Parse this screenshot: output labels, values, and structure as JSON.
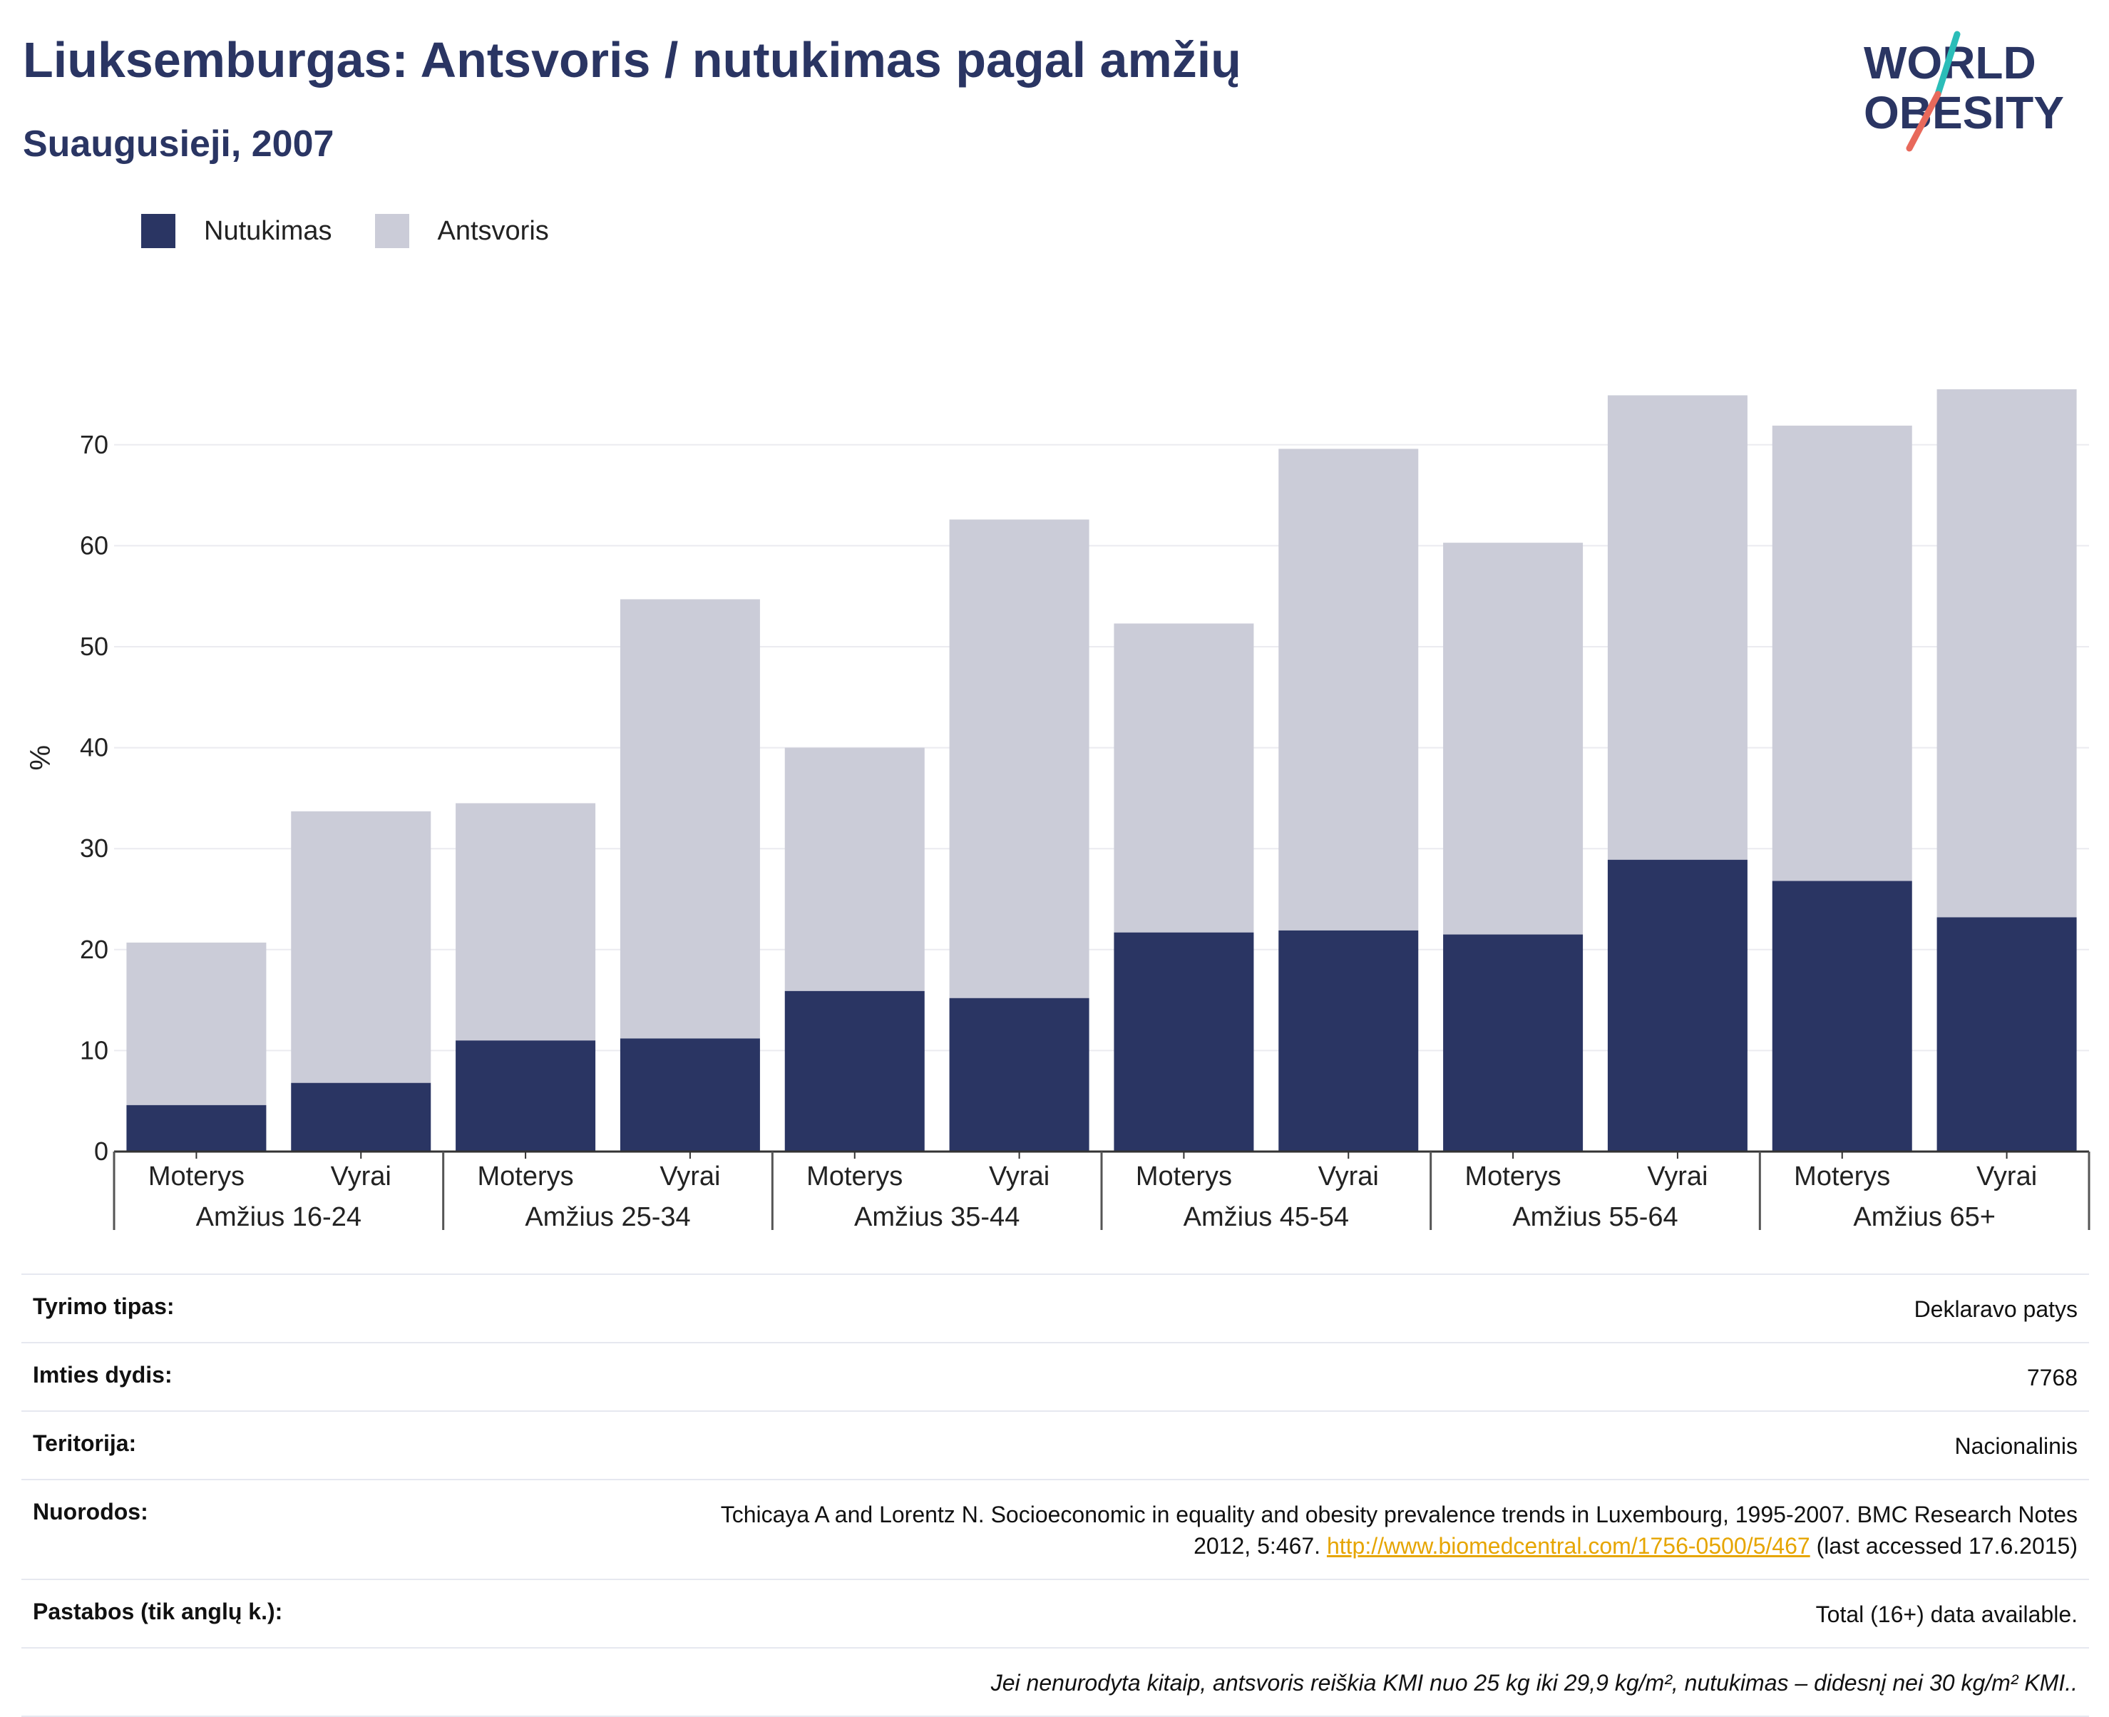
{
  "header": {
    "title": "Liuksemburgas: Antsvoris / nutukimas pagal amžių",
    "subtitle": "Suaugusieji, 2007"
  },
  "logo": {
    "line1": "WORLD",
    "line2": "OBESITY",
    "icon": "world-obesity-logo"
  },
  "colors": {
    "obesity": "#2a3563",
    "overweight": "#cbccd8",
    "title": "#2a3563",
    "link": "#e6a500"
  },
  "legend": [
    {
      "label": "Nutukimas",
      "color": "#2a3563"
    },
    {
      "label": "Antsvoris",
      "color": "#cbccd8"
    }
  ],
  "chart_data": {
    "type": "bar",
    "stacked": true,
    "ylabel": "%",
    "ylim": [
      0,
      78
    ],
    "yticks": [
      0,
      10,
      20,
      30,
      40,
      50,
      60,
      70
    ],
    "grid": true,
    "legend_position": "top-left",
    "groups": [
      "Amžius 16-24",
      "Amžius 25-34",
      "Amžius 35-44",
      "Amžius 45-54",
      "Amžius 55-64",
      "Amžius 65+"
    ],
    "categories": [
      "Moterys",
      "Vyrai",
      "Moterys",
      "Vyrai",
      "Moterys",
      "Vyrai",
      "Moterys",
      "Vyrai",
      "Moterys",
      "Vyrai",
      "Moterys",
      "Vyrai"
    ],
    "series": [
      {
        "name": "Nutukimas",
        "values": [
          4.6,
          6.8,
          11.0,
          11.2,
          15.9,
          15.2,
          21.7,
          21.9,
          21.5,
          28.9,
          26.8,
          23.2
        ]
      },
      {
        "name": "Antsvoris",
        "values": [
          16.1,
          26.9,
          23.5,
          43.5,
          24.1,
          47.4,
          30.6,
          47.7,
          38.8,
          46.0,
          45.1,
          52.3
        ]
      }
    ]
  },
  "info": {
    "survey_type": {
      "label": "Tyrimo tipas:",
      "value": "Deklaravo patys"
    },
    "sample_size": {
      "label": "Imties dydis:",
      "value": "7768"
    },
    "territory": {
      "label": "Teritorija:",
      "value": "Nacionalinis"
    },
    "references": {
      "label": "Nuorodos:",
      "line1": "Tchicaya A and Lorentz N. Socioeconomic in equality and obesity prevalence trends in Luxembourg, 1995-2007. BMC Research Notes",
      "line2_pre": "2012, 5:467. ",
      "link": "http://www.biomedcentral.com/1756-0500/5/467",
      "line2_post": " (last accessed 17.6.2015)"
    },
    "notes": {
      "label": "Pastabos (tik anglų k.):",
      "value": "Total (16+) data available."
    },
    "footnote": "Jei nenurodyta kitaip, antsvoris reiškia KMI nuo 25 kg iki 29,9 kg/m², nutukimas – didesnį nei 30 kg/m² KMI.."
  }
}
